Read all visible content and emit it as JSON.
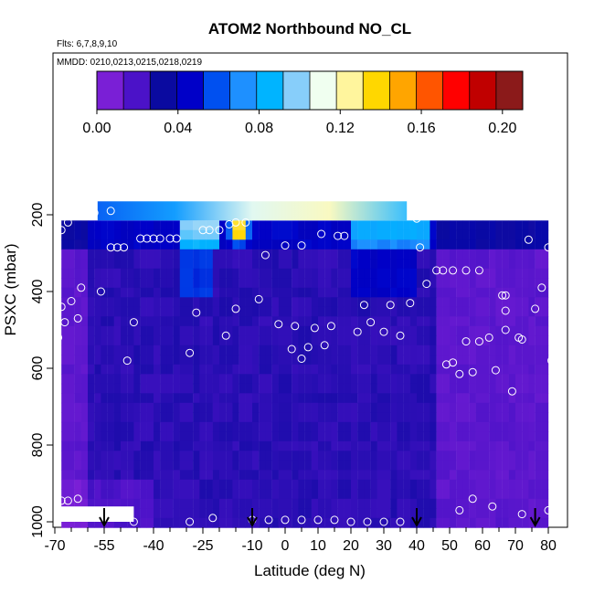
{
  "chart_data": {
    "type": "heatmap",
    "title": "ATOM2 Northbound NO_CL",
    "flights_label": "Flts: 6,7,8,9,10",
    "dates_label": "MMDD: 0210,0213,0215,0218,0219",
    "xlabel": "Latitude (deg N)",
    "ylabel": "PSXC (mbar)",
    "xlim": [
      -70,
      82
    ],
    "ylim": [
      1000,
      100
    ],
    "x_ticks": [
      "-70",
      "-55",
      "-40",
      "-25",
      "-10",
      "0",
      "10",
      "20",
      "30",
      "40",
      "50",
      "60",
      "70",
      "80"
    ],
    "x_tick_values": [
      -70,
      -55,
      -40,
      -25,
      -10,
      0,
      10,
      20,
      30,
      40,
      50,
      60,
      70,
      80
    ],
    "y_ticks": [
      "200",
      "400",
      "600",
      "800",
      "1000"
    ],
    "y_tick_values": [
      200,
      400,
      600,
      800,
      1000
    ],
    "colorbar": {
      "ticks": [
        "0.00",
        "0.04",
        "0.08",
        "0.12",
        "0.16",
        "0.20"
      ],
      "tick_values": [
        0.0,
        0.04,
        0.08,
        0.12,
        0.16,
        0.2
      ],
      "range": [
        0.0,
        0.21
      ],
      "colors": [
        "#7a1fd6",
        "#4b12c8",
        "#0a0aa0",
        "#0000c8",
        "#0050f0",
        "#1e90ff",
        "#00b4ff",
        "#87cefa",
        "#f0fff0",
        "#fff59d",
        "#ffd700",
        "#ffa500",
        "#ff5500",
        "#ff0000",
        "#c00000",
        "#8b1a1a"
      ]
    },
    "grid": false,
    "legend": "top",
    "curtain_segments": [
      {
        "lat_start": -68,
        "lat_end": -55,
        "level": "low"
      },
      {
        "lat_start": -55,
        "lat_end": -32,
        "level": "low"
      },
      {
        "lat_start": -32,
        "lat_end": -22,
        "level": "high"
      },
      {
        "lat_start": -22,
        "lat_end": 20,
        "level": "low"
      },
      {
        "lat_start": 20,
        "lat_end": 45,
        "level": "moderate"
      },
      {
        "lat_start": 45,
        "lat_end": 80,
        "level": "low"
      }
    ],
    "upper_band": {
      "lat_start": -57,
      "lat_end": 37,
      "p_top": 165,
      "p_bottom": 215,
      "value_range": [
        0.06,
        0.12
      ]
    },
    "hotspot": {
      "lat": -14,
      "p": 240,
      "value": 0.2
    },
    "sample_points": [
      {
        "lat": -68,
        "p": 240
      },
      {
        "lat": -66,
        "p": 220
      },
      {
        "lat": -58,
        "p": 195
      },
      {
        "lat": -53,
        "p": 190
      },
      {
        "lat": -68,
        "p": 440
      },
      {
        "lat": -67,
        "p": 480
      },
      {
        "lat": -65,
        "p": 425
      },
      {
        "lat": -63,
        "p": 470
      },
      {
        "lat": -62,
        "p": 390
      },
      {
        "lat": -56,
        "p": 400
      },
      {
        "lat": -69,
        "p": 520
      },
      {
        "lat": -48,
        "p": 580
      },
      {
        "lat": -46,
        "p": 480
      },
      {
        "lat": -53,
        "p": 285
      },
      {
        "lat": -51,
        "p": 285
      },
      {
        "lat": -49,
        "p": 285
      },
      {
        "lat": -44,
        "p": 262
      },
      {
        "lat": -42,
        "p": 262
      },
      {
        "lat": -40,
        "p": 262
      },
      {
        "lat": -38,
        "p": 262
      },
      {
        "lat": -35,
        "p": 262
      },
      {
        "lat": -33,
        "p": 262
      },
      {
        "lat": -29,
        "p": 560
      },
      {
        "lat": -27,
        "p": 455
      },
      {
        "lat": -25,
        "p": 240
      },
      {
        "lat": -23,
        "p": 240
      },
      {
        "lat": -20,
        "p": 240
      },
      {
        "lat": -17,
        "p": 225
      },
      {
        "lat": -15,
        "p": 220
      },
      {
        "lat": -12,
        "p": 220
      },
      {
        "lat": -18,
        "p": 515
      },
      {
        "lat": -15,
        "p": 445
      },
      {
        "lat": -8,
        "p": 420
      },
      {
        "lat": -6,
        "p": 305
      },
      {
        "lat": -2,
        "p": 485
      },
      {
        "lat": 0,
        "p": 280
      },
      {
        "lat": 2,
        "p": 550
      },
      {
        "lat": 3,
        "p": 490
      },
      {
        "lat": 5,
        "p": 280
      },
      {
        "lat": 5,
        "p": 575
      },
      {
        "lat": 7,
        "p": 545
      },
      {
        "lat": 9,
        "p": 495
      },
      {
        "lat": 11,
        "p": 250
      },
      {
        "lat": 12,
        "p": 540
      },
      {
        "lat": 14,
        "p": 490
      },
      {
        "lat": 16,
        "p": 255
      },
      {
        "lat": 18,
        "p": 255
      },
      {
        "lat": 22,
        "p": 505
      },
      {
        "lat": 24,
        "p": 435
      },
      {
        "lat": 26,
        "p": 480
      },
      {
        "lat": 30,
        "p": 505
      },
      {
        "lat": 32,
        "p": 435
      },
      {
        "lat": 35,
        "p": 515
      },
      {
        "lat": 38,
        "p": 430
      },
      {
        "lat": 40,
        "p": 210
      },
      {
        "lat": 41,
        "p": 285
      },
      {
        "lat": 43,
        "p": 380
      },
      {
        "lat": 46,
        "p": 345
      },
      {
        "lat": 48,
        "p": 345
      },
      {
        "lat": 51,
        "p": 345
      },
      {
        "lat": 55,
        "p": 345
      },
      {
        "lat": 59,
        "p": 345
      },
      {
        "lat": 49,
        "p": 590
      },
      {
        "lat": 51,
        "p": 585
      },
      {
        "lat": 53,
        "p": 615
      },
      {
        "lat": 55,
        "p": 530
      },
      {
        "lat": 57,
        "p": 610
      },
      {
        "lat": 59,
        "p": 530
      },
      {
        "lat": 62,
        "p": 520
      },
      {
        "lat": 64,
        "p": 605
      },
      {
        "lat": 66,
        "p": 410
      },
      {
        "lat": 67,
        "p": 410
      },
      {
        "lat": 67,
        "p": 450
      },
      {
        "lat": 67,
        "p": 500
      },
      {
        "lat": 69,
        "p": 660
      },
      {
        "lat": 71,
        "p": 520
      },
      {
        "lat": 72,
        "p": 525
      },
      {
        "lat": 74,
        "p": 265
      },
      {
        "lat": 76,
        "p": 445
      },
      {
        "lat": 78,
        "p": 390
      },
      {
        "lat": 80,
        "p": 285
      },
      {
        "lat": 81,
        "p": 580
      },
      {
        "lat": -68,
        "p": 945
      },
      {
        "lat": -66,
        "p": 945
      },
      {
        "lat": -63,
        "p": 940
      },
      {
        "lat": -46,
        "p": 1000
      },
      {
        "lat": -29,
        "p": 1000
      },
      {
        "lat": -22,
        "p": 990
      },
      {
        "lat": -10,
        "p": 995
      },
      {
        "lat": -5,
        "p": 995
      },
      {
        "lat": 0,
        "p": 995
      },
      {
        "lat": 5,
        "p": 995
      },
      {
        "lat": 10,
        "p": 995
      },
      {
        "lat": 15,
        "p": 995
      },
      {
        "lat": 20,
        "p": 1000
      },
      {
        "lat": 25,
        "p": 1000
      },
      {
        "lat": 30,
        "p": 1000
      },
      {
        "lat": 35,
        "p": 1000
      },
      {
        "lat": 53,
        "p": 970
      },
      {
        "lat": 57,
        "p": 940
      },
      {
        "lat": 63,
        "p": 960
      },
      {
        "lat": 72,
        "p": 980
      },
      {
        "lat": 80,
        "p": 970
      }
    ],
    "arrows_lat": [
      -55,
      -10,
      40,
      76
    ]
  }
}
